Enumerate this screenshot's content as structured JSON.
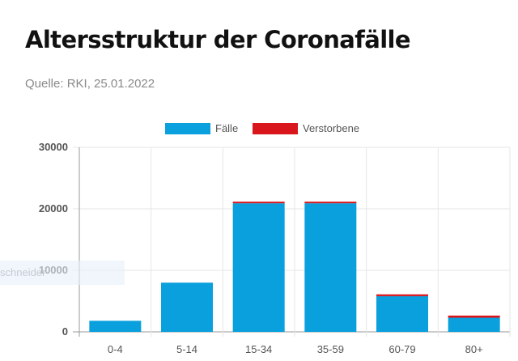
{
  "header": {
    "title": "Altersstruktur der Coronafälle",
    "source": "Quelle: RKI, 25.01.2022"
  },
  "overlay_text": "schneider",
  "chart_data": {
    "type": "bar",
    "stacked": true,
    "title": "Altersstruktur der Coronafälle",
    "categories": [
      "0-4",
      "5-14",
      "15-34",
      "35-59",
      "60-79",
      "80+"
    ],
    "series": [
      {
        "name": "Fälle",
        "color": "#0aa0dd",
        "values": [
          1800,
          8000,
          20900,
          20900,
          5800,
          2300
        ]
      },
      {
        "name": "Verstorbene",
        "color": "#d9161c",
        "values": [
          0,
          0,
          10,
          150,
          300,
          350
        ]
      }
    ],
    "y_ticks": [
      "0",
      "10000",
      "20000",
      "30000"
    ],
    "ylim": [
      0,
      30000
    ],
    "legend_position": "top-center",
    "grid": true
  }
}
